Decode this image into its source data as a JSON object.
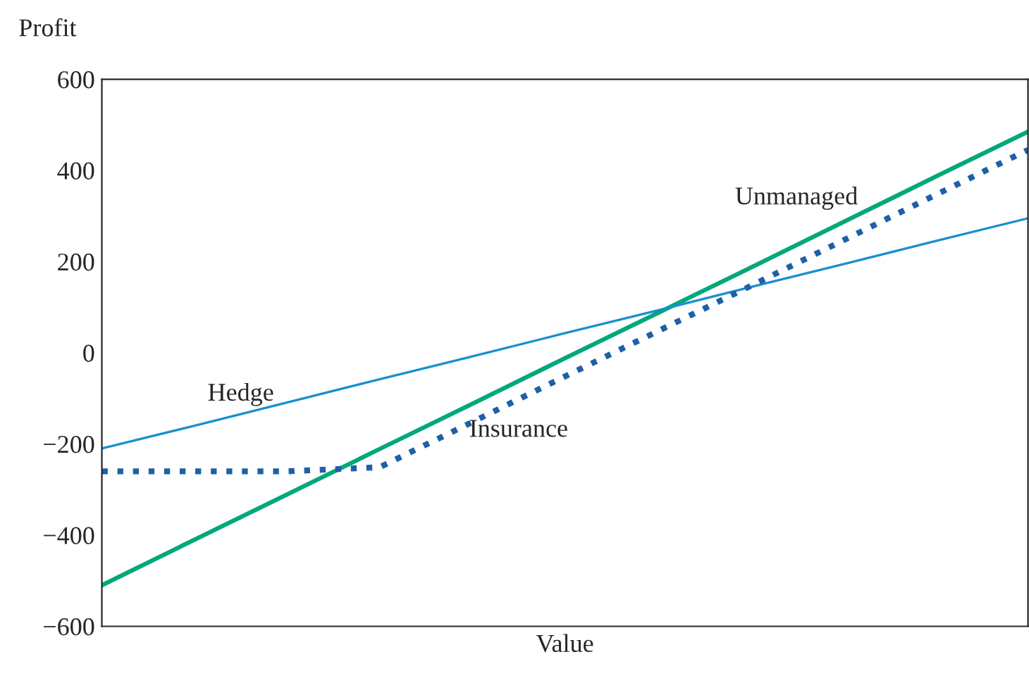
{
  "chart_data": {
    "type": "line",
    "xlabel": "Value",
    "ylabel": "Profit",
    "categories": [
      null,
      null,
      null,
      null,
      null,
      null,
      null,
      null,
      null,
      null,
      null
    ],
    "series": [
      {
        "name": "Unmanaged",
        "color": "#00a87a",
        "line_style": "solid",
        "values": [
          -510,
          -410,
          -311,
          -211,
          -112,
          -12,
          87,
          186,
          286,
          386,
          485
        ]
      },
      {
        "name": "Hedge",
        "color": "#1a8fd0",
        "line_style": "solid",
        "values": [
          -210,
          -160,
          -109,
          -58,
          -8,
          43,
          93,
          144,
          194,
          245,
          295
        ]
      },
      {
        "name": "Insurance",
        "color": "#1f5fa8",
        "line_style": "dotted",
        "values": [
          -260,
          -260,
          -260,
          -251,
          -152,
          -52,
          47,
          146,
          246,
          346,
          445
        ]
      }
    ],
    "ylim": [
      -600,
      600
    ],
    "yticks": [
      {
        "value": -600,
        "label": "−600"
      },
      {
        "value": -400,
        "label": "−400"
      },
      {
        "value": -200,
        "label": "−200"
      },
      0,
      200,
      400,
      600
    ],
    "tick_labels": "y",
    "grid": false,
    "legend": false,
    "marker": "none"
  }
}
